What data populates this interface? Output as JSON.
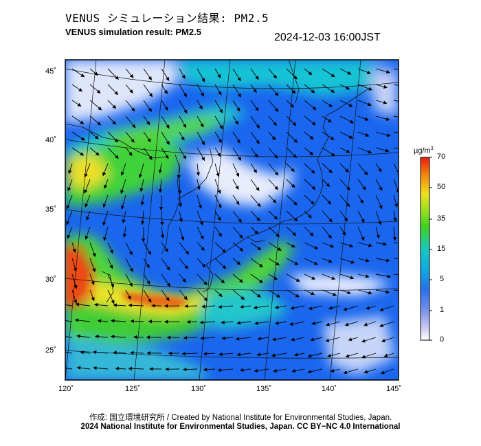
{
  "header": {
    "title_jp": "VENUS シミュレーション結果: PM2.5",
    "title_en": "VENUS simulation result: PM2.5",
    "timestamp": "2024-12-03 16:00JST"
  },
  "map": {
    "lon_labels": [
      "120˚",
      "125˚",
      "130˚",
      "135˚",
      "140˚",
      "145˚"
    ],
    "lat_labels": [
      "45˚",
      "40˚",
      "35˚",
      "30˚",
      "25˚"
    ],
    "field": "PM2.5 concentration with wind vectors",
    "colors": {
      "low": "#f0f0ff",
      "blue": "#1a5ff0",
      "cyan": "#18c8d0",
      "green": "#30d030",
      "yellow": "#f0e020",
      "red": "#e81e10"
    }
  },
  "colorbar": {
    "unit_base": "µg/m",
    "unit_sup": "3",
    "labels": [
      "70",
      "50",
      "35",
      "15",
      "5",
      "1",
      "0"
    ]
  },
  "footer": {
    "credit": "作成: 国立環境研究所 / Created by National Institute for Environmental Studies, Japan.",
    "license": "2024 National Institute for Environmental Studies, Japan. CC BY−NC 4.0 International"
  }
}
